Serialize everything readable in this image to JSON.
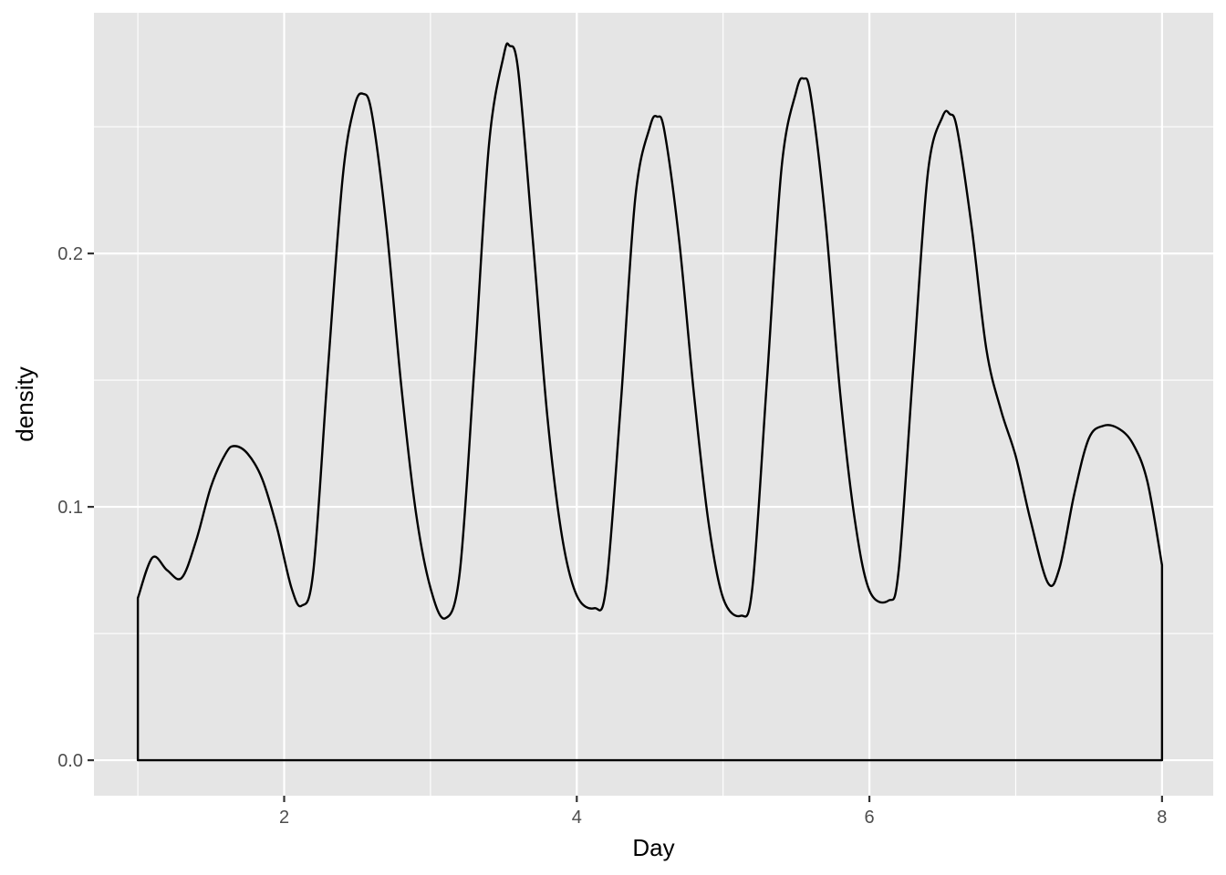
{
  "chart_data": {
    "type": "area",
    "geom": "density",
    "xlabel": "Day",
    "ylabel": "density",
    "xlim": [
      0.7,
      8.35
    ],
    "ylim": [
      -0.014,
      0.295
    ],
    "x_ticks": [
      2,
      4,
      6,
      8
    ],
    "x_tick_labels": [
      "2",
      "4",
      "6",
      "8"
    ],
    "y_ticks": [
      0.0,
      0.1,
      0.2
    ],
    "y_tick_labels": [
      "0.0",
      "0.1",
      "0.2"
    ],
    "x_minor_ticks": [
      1,
      3,
      5,
      7
    ],
    "y_minor_ticks": [
      0.05,
      0.15,
      0.25
    ],
    "grid": true,
    "panel_color": "#e5e5e5",
    "grid_color": "#ffffff",
    "line_color": "#000000",
    "fill": "none",
    "series": [
      {
        "x": [
          1.0,
          1.1,
          1.2,
          1.3,
          1.4,
          1.5,
          1.6,
          1.66,
          1.75,
          1.85,
          1.95,
          2.05,
          2.12,
          2.2,
          2.3,
          2.4,
          2.48,
          2.54,
          2.6,
          2.7,
          2.8,
          2.9,
          3.0,
          3.1,
          3.2,
          3.3,
          3.4,
          3.5,
          3.54,
          3.6,
          3.7,
          3.8,
          3.9,
          4.0,
          4.12,
          4.2,
          4.3,
          4.4,
          4.5,
          4.55,
          4.6,
          4.7,
          4.8,
          4.9,
          5.0,
          5.12,
          5.2,
          5.3,
          5.4,
          5.5,
          5.55,
          5.6,
          5.7,
          5.8,
          5.9,
          6.0,
          6.13,
          6.2,
          6.3,
          6.4,
          6.5,
          6.55,
          6.6,
          6.7,
          6.8,
          6.9,
          7.0,
          7.1,
          7.22,
          7.3,
          7.4,
          7.5,
          7.6,
          7.7,
          7.8,
          7.9,
          8.0
        ],
        "y": [
          0.064,
          0.08,
          0.075,
          0.072,
          0.087,
          0.108,
          0.121,
          0.124,
          0.121,
          0.111,
          0.092,
          0.068,
          0.061,
          0.075,
          0.155,
          0.23,
          0.258,
          0.263,
          0.255,
          0.21,
          0.148,
          0.098,
          0.068,
          0.056,
          0.074,
          0.155,
          0.243,
          0.278,
          0.282,
          0.272,
          0.205,
          0.135,
          0.088,
          0.065,
          0.06,
          0.068,
          0.14,
          0.222,
          0.25,
          0.254,
          0.248,
          0.205,
          0.145,
          0.094,
          0.064,
          0.057,
          0.068,
          0.15,
          0.234,
          0.264,
          0.269,
          0.262,
          0.213,
          0.145,
          0.095,
          0.067,
          0.063,
          0.075,
          0.155,
          0.232,
          0.254,
          0.255,
          0.249,
          0.21,
          0.162,
          0.138,
          0.12,
          0.095,
          0.07,
          0.076,
          0.105,
          0.127,
          0.132,
          0.131,
          0.125,
          0.11,
          0.077
        ]
      }
    ]
  }
}
